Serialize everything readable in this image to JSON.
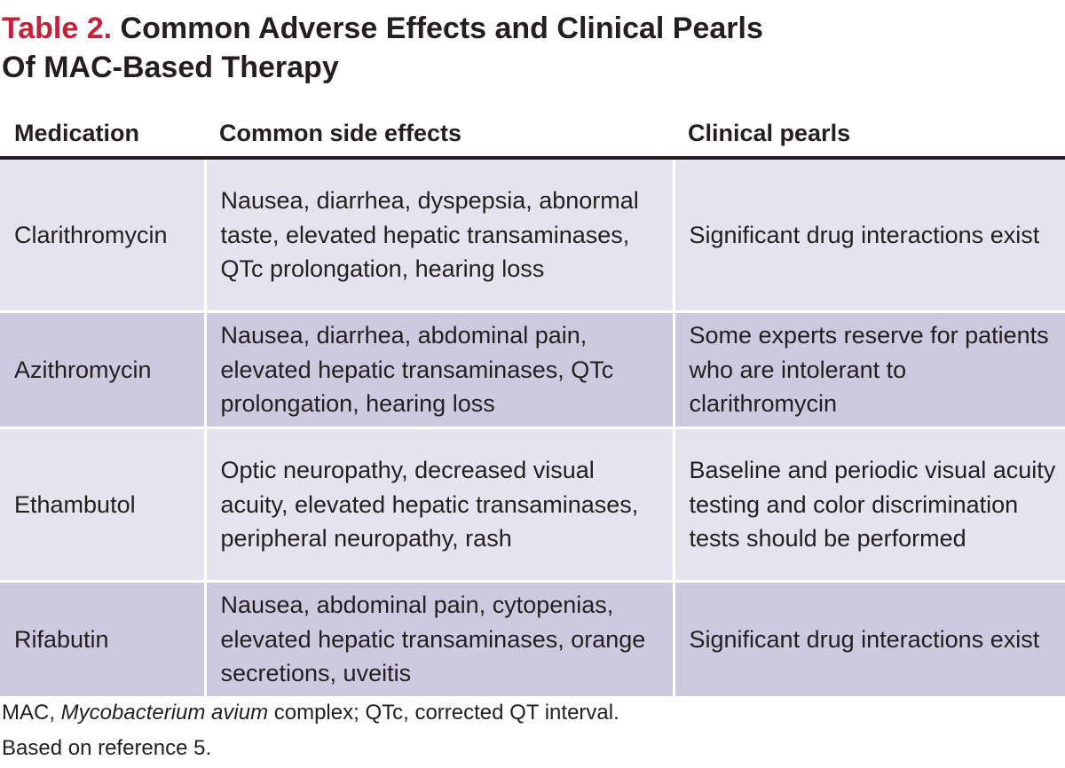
{
  "title": {
    "label": "Table 2.",
    "line1": "Common Adverse Effects and Clinical Pearls",
    "line2": "Of MAC-Based Therapy"
  },
  "colors": {
    "title_label": "#c0233a",
    "row_light": "#e4e3ee",
    "row_dark": "#cdcae0",
    "text": "#231f20"
  },
  "table": {
    "headers": [
      "Medication",
      "Common side effects",
      "Clinical pearls"
    ],
    "rows": [
      {
        "medication": "Clarithromycin",
        "side_effects": "Nausea, diarrhea, dyspepsia, abnormal taste, elevated hepatic transaminases, QTc prolongation, hearing loss",
        "pearls": "Significant drug interactions exist"
      },
      {
        "medication": "Azithromycin",
        "side_effects": "Nausea, diarrhea, abdominal pain, elevated hepatic transaminases, QTc prolongation, hearing loss",
        "pearls": "Some experts reserve for patients who are intolerant to clarithromycin"
      },
      {
        "medication": "Ethambutol",
        "side_effects": "Optic neuropathy, decreased visual acuity, elevated hepatic transaminases, peripheral neuropathy, rash",
        "pearls": "Baseline and periodic visual acuity testing and color discrimination tests should be performed"
      },
      {
        "medication": "Rifabutin",
        "side_effects": "Nausea, abdominal pain, cytopenias, elevated hepatic transaminases, orange secretions, uveitis",
        "pearls": "Significant drug interactions exist"
      }
    ]
  },
  "footnotes": {
    "abbrev_prefix": "MAC, ",
    "abbrev_italic": "Mycobacterium avium",
    "abbrev_suffix": " complex; QTc, corrected QT interval.",
    "reference": "Based on reference 5."
  }
}
